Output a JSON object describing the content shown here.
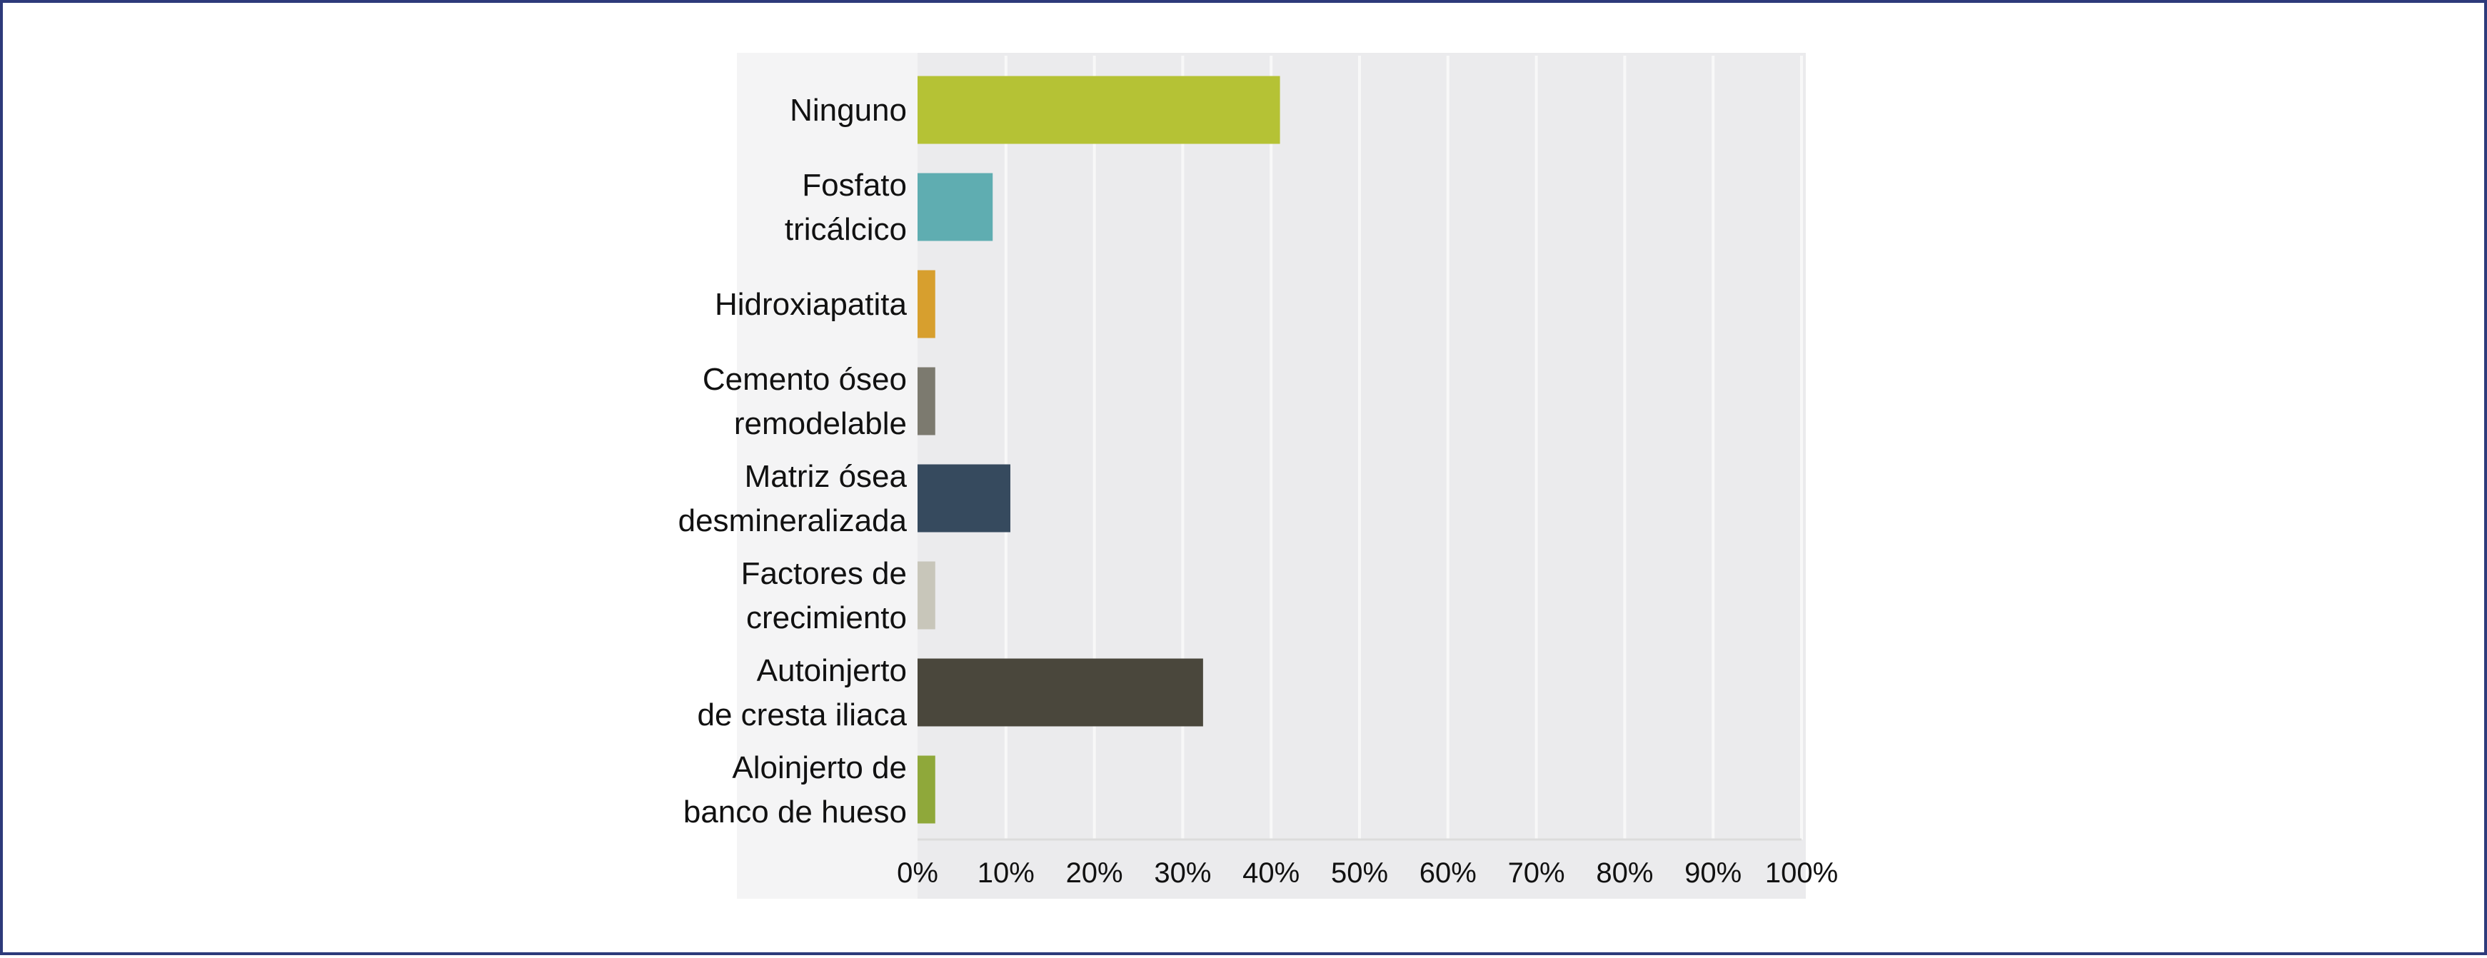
{
  "chart_data": {
    "type": "bar",
    "orientation": "horizontal",
    "title": "",
    "xlabel": "",
    "ylabel": "",
    "xlim": [
      0,
      100
    ],
    "grid": true,
    "legend": "none",
    "categories": [
      [
        "Ninguno"
      ],
      [
        "Fosfato",
        "tricálcico"
      ],
      [
        "Hidroxiapatita"
      ],
      [
        "Cemento óseo",
        "remodelable"
      ],
      [
        "Matriz ósea",
        "desmineralizada"
      ],
      [
        "Factores de",
        "crecimiento"
      ],
      [
        "Autoinjerto",
        "de cresta iliaca"
      ],
      [
        "Aloinjerto de",
        "banco de hueso"
      ]
    ],
    "values": [
      41,
      8.5,
      2,
      2,
      10.5,
      2,
      32.3,
      2
    ],
    "colors": [
      "#b5c235",
      "#5fadb1",
      "#d79f2e",
      "#7c7a6f",
      "#364a5e",
      "#c8c6ba",
      "#4a473c",
      "#8fa83a"
    ],
    "x_ticks": [
      "0%",
      "10%",
      "20%",
      "30%",
      "40%",
      "50%",
      "60%",
      "70%",
      "80%",
      "90%",
      "100%"
    ]
  }
}
